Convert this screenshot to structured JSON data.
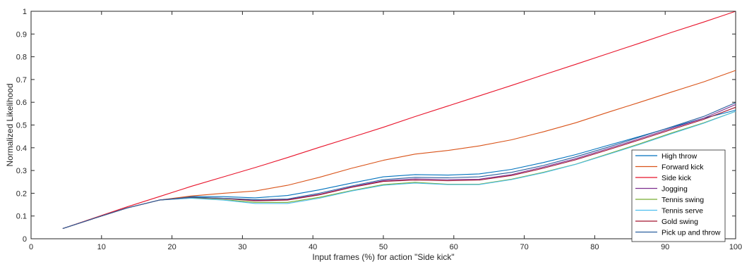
{
  "chart_data": {
    "type": "line",
    "xlabel": "Input frames (%) for action \"Side kick\"",
    "ylabel": "Normalized Likelihood",
    "xlim": [
      0,
      100
    ],
    "ylim": [
      0,
      1
    ],
    "xticks": [
      "0",
      "10",
      "20",
      "30",
      "40",
      "50",
      "60",
      "70",
      "80",
      "90",
      "100"
    ],
    "yticks": [
      "0",
      "0.1",
      "0.2",
      "0.3",
      "0.4",
      "0.5",
      "0.6",
      "0.7",
      "0.8",
      "0.9",
      "1"
    ],
    "grid": false,
    "legend_position": "bottom-right",
    "x": [
      4.5,
      9,
      13.6,
      18.2,
      22.7,
      27.3,
      31.8,
      36.4,
      40.9,
      45.5,
      50,
      54.5,
      59.1,
      63.6,
      68.2,
      72.7,
      77.3,
      81.8,
      86.4,
      90.9,
      95.5,
      100
    ],
    "series": [
      {
        "name": "High throw",
        "color": "#0072bd",
        "values": [
          0.045,
          0.09,
          0.135,
          0.17,
          0.185,
          0.185,
          0.18,
          0.19,
          0.215,
          0.245,
          0.272,
          0.282,
          0.28,
          0.285,
          0.305,
          0.335,
          0.37,
          0.41,
          0.45,
          0.49,
          0.53,
          0.565
        ]
      },
      {
        "name": "Forward kick",
        "color": "#d95319",
        "values": [
          0.045,
          0.09,
          0.135,
          0.17,
          0.188,
          0.2,
          0.21,
          0.235,
          0.27,
          0.31,
          0.345,
          0.372,
          0.388,
          0.408,
          0.435,
          0.47,
          0.51,
          0.555,
          0.6,
          0.645,
          0.69,
          0.74
        ]
      },
      {
        "name": "Side kick",
        "color": "#e8142b",
        "values": [
          0.045,
          0.092,
          0.14,
          0.185,
          0.23,
          0.272,
          0.313,
          0.357,
          0.402,
          0.446,
          0.49,
          0.537,
          0.583,
          0.628,
          0.674,
          0.72,
          0.767,
          0.813,
          0.86,
          0.907,
          0.953,
          1.0
        ]
      },
      {
        "name": "Jogging",
        "color": "#7e2f8e",
        "values": [
          0.045,
          0.09,
          0.135,
          0.17,
          0.182,
          0.178,
          0.168,
          0.172,
          0.195,
          0.228,
          0.255,
          0.263,
          0.26,
          0.262,
          0.282,
          0.315,
          0.352,
          0.395,
          0.44,
          0.485,
          0.53,
          0.59
        ]
      },
      {
        "name": "Tennis swing",
        "color": "#77ac30",
        "values": [
          0.045,
          0.09,
          0.135,
          0.17,
          0.18,
          0.172,
          0.16,
          0.16,
          0.182,
          0.212,
          0.238,
          0.248,
          0.24,
          0.24,
          0.262,
          0.292,
          0.328,
          0.372,
          0.418,
          0.465,
          0.51,
          0.56
        ]
      },
      {
        "name": "Tennis serve",
        "color": "#4dbeee",
        "values": [
          0.045,
          0.09,
          0.135,
          0.17,
          0.178,
          0.17,
          0.155,
          0.155,
          0.178,
          0.21,
          0.235,
          0.245,
          0.238,
          0.238,
          0.26,
          0.29,
          0.327,
          0.37,
          0.415,
          0.462,
          0.508,
          0.56
        ]
      },
      {
        "name": "Gold swing",
        "color": "#a2142f",
        "values": [
          0.045,
          0.09,
          0.135,
          0.17,
          0.182,
          0.177,
          0.167,
          0.17,
          0.193,
          0.226,
          0.252,
          0.258,
          0.255,
          0.258,
          0.278,
          0.31,
          0.347,
          0.39,
          0.435,
          0.48,
          0.525,
          0.578
        ]
      },
      {
        "name": "Pick up and throw",
        "color": "#2c5f9e",
        "values": [
          0.045,
          0.09,
          0.135,
          0.17,
          0.183,
          0.178,
          0.172,
          0.175,
          0.2,
          0.232,
          0.26,
          0.27,
          0.268,
          0.272,
          0.292,
          0.322,
          0.36,
          0.402,
          0.447,
          0.492,
          0.538,
          0.598
        ]
      }
    ]
  }
}
